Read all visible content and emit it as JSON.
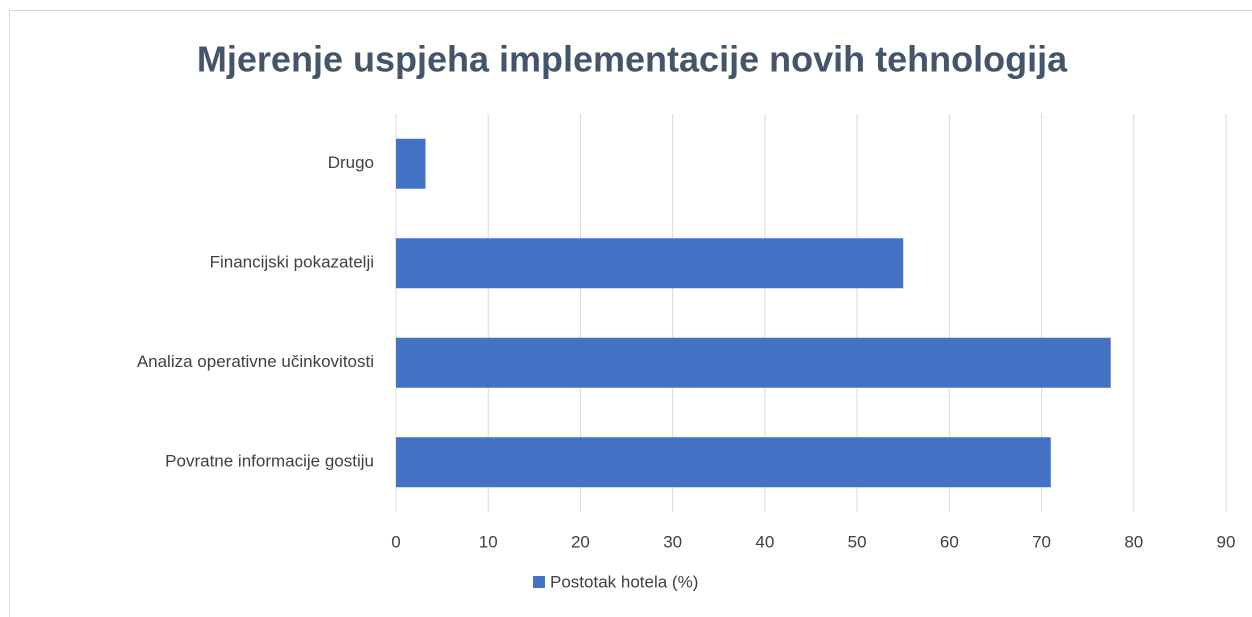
{
  "chart_data": {
    "type": "bar",
    "orientation": "horizontal",
    "title": "Mjerenje uspjeha implementacije novih tehnologija",
    "categories": [
      "Povratne informacije gostiju",
      "Analiza operativne učinkovitosti",
      "Financijski pokazatelji",
      "Drugo"
    ],
    "series": [
      {
        "name": "Postotak hotela (%)",
        "color": "#4472c4",
        "values": [
          71,
          77.5,
          55,
          3.2
        ]
      }
    ],
    "xlim": [
      0,
      90
    ],
    "xticks": [
      0,
      10,
      20,
      30,
      40,
      50,
      60,
      70,
      80,
      90
    ],
    "grid": true,
    "legend": "bottom"
  }
}
